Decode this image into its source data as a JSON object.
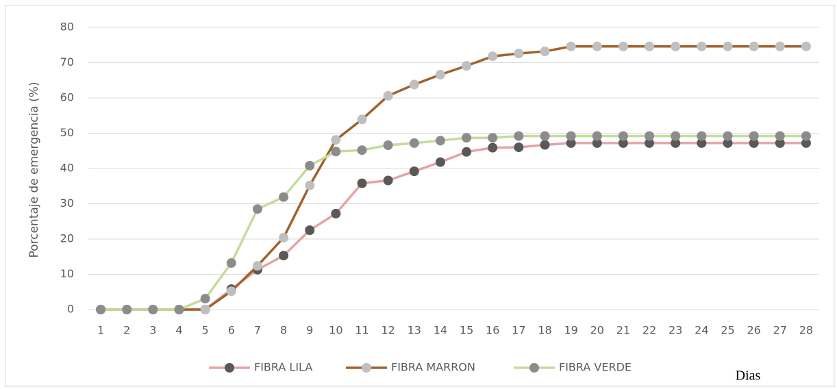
{
  "chart_data": {
    "type": "line",
    "y_label": "Porcentaje de emergencia (%)",
    "x_label": "Dias",
    "categories": [
      "1",
      "2",
      "3",
      "4",
      "5",
      "6",
      "7",
      "8",
      "9",
      "10",
      "11",
      "12",
      "13",
      "14",
      "15",
      "16",
      "17",
      "18",
      "19",
      "20",
      "21",
      "22",
      "23",
      "24",
      "25",
      "26",
      "27",
      "28"
    ],
    "ylim": [
      0,
      80
    ],
    "yticks": [
      0,
      10,
      20,
      30,
      40,
      50,
      60,
      70,
      80
    ],
    "grid": true,
    "legend": "bottom",
    "series": [
      {
        "name": "FIBRA LILA",
        "color": "#e6a3a3",
        "marker_color": "#595959",
        "values": [
          0,
          0,
          0,
          0,
          0,
          5.8,
          11.3,
          15.3,
          22.5,
          27.2,
          35.8,
          36.6,
          39.2,
          41.8,
          44.7,
          45.9,
          46.0,
          46.7,
          47.2,
          47.2,
          47.2,
          47.2,
          47.2,
          47.2,
          47.2,
          47.2,
          47.2,
          47.2
        ]
      },
      {
        "name": "FIBRA MARRON",
        "color": "#a0622d",
        "marker_color": "#bfbfbf",
        "values": [
          0,
          0,
          0,
          0,
          0,
          5.2,
          12.4,
          20.4,
          35.2,
          48.1,
          53.9,
          60.6,
          63.8,
          66.6,
          69.1,
          71.8,
          72.6,
          73.2,
          74.6,
          74.6,
          74.6,
          74.6,
          74.6,
          74.6,
          74.6,
          74.6,
          74.6,
          74.6
        ]
      },
      {
        "name": "FIBRA VERDE",
        "color": "#c4dc9c",
        "marker_color": "#8c8c8c",
        "values": [
          0,
          0,
          0,
          0,
          3.1,
          13.2,
          28.5,
          31.9,
          40.8,
          44.8,
          45.2,
          46.6,
          47.2,
          47.9,
          48.7,
          48.7,
          49.2,
          49.2,
          49.2,
          49.2,
          49.2,
          49.2,
          49.2,
          49.2,
          49.2,
          49.2,
          49.2,
          49.2
        ]
      }
    ]
  }
}
